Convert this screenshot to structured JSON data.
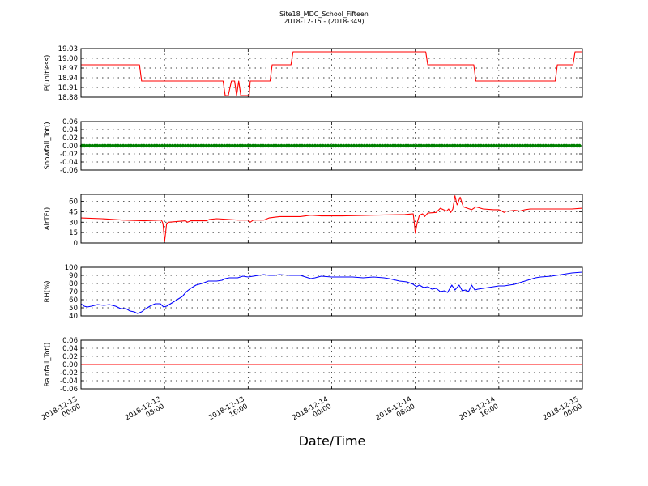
{
  "header": {
    "title": "Site18_MDC_School_Fifteen",
    "subtitle": "2018-12-15 - (2018-349)"
  },
  "chart_data": {
    "type": "line",
    "xlabel": "Date/Time",
    "x_ticks": [
      {
        "hours": 0,
        "line1": "2018-12-13",
        "line2": "00:00"
      },
      {
        "hours": 8,
        "line1": "2018-12-13",
        "line2": "08:00"
      },
      {
        "hours": 16,
        "line1": "2018-12-13",
        "line2": "16:00"
      },
      {
        "hours": 24,
        "line1": "2018-12-14",
        "line2": "00:00"
      },
      {
        "hours": 32,
        "line1": "2018-12-14",
        "line2": "08:00"
      },
      {
        "hours": 40,
        "line1": "2018-12-14",
        "line2": "16:00"
      },
      {
        "hours": 48,
        "line1": "2018-12-15",
        "line2": "00:00"
      }
    ],
    "xlim_hours": [
      0,
      48
    ],
    "grid": true,
    "panels": [
      {
        "ylabel": "P(unitless)",
        "ylim": [
          18.88,
          19.03
        ],
        "yticks": [
          "18.88",
          "18.91",
          "18.94",
          "18.97",
          "19.00",
          "19.03"
        ],
        "color": "#ff0000",
        "style": "line",
        "points": [
          [
            0,
            18.98
          ],
          [
            5.6,
            18.98
          ],
          [
            5.8,
            18.93
          ],
          [
            13.6,
            18.93
          ],
          [
            13.8,
            18.885
          ],
          [
            14.1,
            18.885
          ],
          [
            14.4,
            18.93
          ],
          [
            14.7,
            18.93
          ],
          [
            14.9,
            18.885
          ],
          [
            15.1,
            18.93
          ],
          [
            15.3,
            18.885
          ],
          [
            16.1,
            18.885
          ],
          [
            16.2,
            18.93
          ],
          [
            18.1,
            18.93
          ],
          [
            18.3,
            18.98
          ],
          [
            20.1,
            18.98
          ],
          [
            20.3,
            19.02
          ],
          [
            33.0,
            19.02
          ],
          [
            33.2,
            18.98
          ],
          [
            37.6,
            18.98
          ],
          [
            37.8,
            18.93
          ],
          [
            45.4,
            18.93
          ],
          [
            45.6,
            18.98
          ],
          [
            47.1,
            18.98
          ],
          [
            47.3,
            19.02
          ],
          [
            48,
            19.02
          ]
        ]
      },
      {
        "ylabel": "Snowfall_Tot()",
        "ylim": [
          -0.06,
          0.06
        ],
        "yticks": [
          "-0.06",
          "-0.04",
          "-0.02",
          "0.00",
          "0.02",
          "0.04",
          "0.06"
        ],
        "color": "#008000",
        "style": "dots",
        "points": [
          [
            0,
            0
          ],
          [
            48,
            0
          ]
        ]
      },
      {
        "ylabel": "AirTF()",
        "ylim": [
          0,
          70
        ],
        "yticks": [
          "0",
          "15",
          "30",
          "45",
          "60"
        ],
        "color": "#ff0000",
        "style": "line",
        "points": [
          [
            0,
            36
          ],
          [
            2,
            35
          ],
          [
            4,
            33
          ],
          [
            6,
            32
          ],
          [
            7.7,
            33
          ],
          [
            7.85,
            28
          ],
          [
            8.0,
            2
          ],
          [
            8.2,
            28
          ],
          [
            8.4,
            30
          ],
          [
            10,
            32
          ],
          [
            10.2,
            30
          ],
          [
            10.5,
            32
          ],
          [
            12,
            32
          ],
          [
            12.3,
            34
          ],
          [
            13,
            35
          ],
          [
            15,
            33
          ],
          [
            16,
            33
          ],
          [
            16.2,
            30
          ],
          [
            16.5,
            33
          ],
          [
            17.5,
            33
          ],
          [
            18,
            36
          ],
          [
            19,
            38
          ],
          [
            21,
            38
          ],
          [
            22,
            40
          ],
          [
            23,
            39
          ],
          [
            25,
            39
          ],
          [
            28,
            40
          ],
          [
            31,
            41
          ],
          [
            31.8,
            42
          ],
          [
            31.9,
            30
          ],
          [
            32.0,
            14
          ],
          [
            32.2,
            30
          ],
          [
            32.4,
            40
          ],
          [
            32.7,
            42
          ],
          [
            32.9,
            38
          ],
          [
            33.2,
            43
          ],
          [
            34,
            44
          ],
          [
            34.4,
            50
          ],
          [
            35,
            46
          ],
          [
            35.2,
            49
          ],
          [
            35.4,
            44
          ],
          [
            35.6,
            49
          ],
          [
            35.8,
            68
          ],
          [
            36,
            55
          ],
          [
            36.3,
            66
          ],
          [
            36.6,
            52
          ],
          [
            37,
            50
          ],
          [
            37.4,
            48
          ],
          [
            37.8,
            52
          ],
          [
            38.5,
            49
          ],
          [
            39.5,
            48
          ],
          [
            40,
            48
          ],
          [
            40.3,
            46
          ],
          [
            40.5,
            44
          ],
          [
            40.7,
            46
          ],
          [
            41,
            46
          ],
          [
            41.5,
            47
          ],
          [
            42,
            46
          ],
          [
            42.5,
            48
          ],
          [
            43,
            49
          ],
          [
            45,
            49
          ],
          [
            47,
            49
          ],
          [
            48,
            50
          ]
        ]
      },
      {
        "ylabel": "RH(%)",
        "ylim": [
          40,
          100
        ],
        "yticks": [
          "40",
          "50",
          "60",
          "70",
          "80",
          "90",
          "100"
        ],
        "color": "#0000ff",
        "style": "line",
        "points": [
          [
            0,
            55
          ],
          [
            0.3,
            52
          ],
          [
            0.6,
            51
          ],
          [
            1,
            52
          ],
          [
            1.6,
            54
          ],
          [
            2.2,
            53
          ],
          [
            2.7,
            54
          ],
          [
            3.3,
            52
          ],
          [
            3.8,
            49
          ],
          [
            4.3,
            49
          ],
          [
            4.7,
            46
          ],
          [
            5.1,
            45
          ],
          [
            5.4,
            43
          ],
          [
            5.8,
            45
          ],
          [
            6.1,
            48
          ],
          [
            6.6,
            52
          ],
          [
            7.1,
            55
          ],
          [
            7.6,
            55
          ],
          [
            7.9,
            51
          ],
          [
            8.2,
            52
          ],
          [
            8.7,
            56
          ],
          [
            9.2,
            60
          ],
          [
            9.7,
            64
          ],
          [
            10.1,
            70
          ],
          [
            10.5,
            74
          ],
          [
            11,
            78
          ],
          [
            11.6,
            80
          ],
          [
            12.2,
            83
          ],
          [
            13,
            83
          ],
          [
            13.5,
            84
          ],
          [
            13.8,
            86
          ],
          [
            14.2,
            87
          ],
          [
            15,
            87
          ],
          [
            15.5,
            89
          ],
          [
            16,
            88
          ],
          [
            16.5,
            89
          ],
          [
            17,
            90
          ],
          [
            17.5,
            91
          ],
          [
            18,
            90
          ],
          [
            18.5,
            90
          ],
          [
            19,
            91
          ],
          [
            20,
            90
          ],
          [
            21,
            90
          ],
          [
            21.5,
            88
          ],
          [
            22,
            86
          ],
          [
            22.4,
            87
          ],
          [
            23,
            89
          ],
          [
            24,
            88
          ],
          [
            25,
            88
          ],
          [
            26,
            88
          ],
          [
            27,
            87
          ],
          [
            28,
            88
          ],
          [
            29,
            87
          ],
          [
            29.5,
            86
          ],
          [
            30.5,
            83
          ],
          [
            31.2,
            82
          ],
          [
            31.8,
            79
          ],
          [
            32.1,
            76
          ],
          [
            32.4,
            78
          ],
          [
            32.8,
            75
          ],
          [
            33.2,
            76
          ],
          [
            33.6,
            73
          ],
          [
            34,
            74
          ],
          [
            34.4,
            70
          ],
          [
            34.8,
            71
          ],
          [
            35.1,
            69
          ],
          [
            35.5,
            78
          ],
          [
            35.8,
            72
          ],
          [
            36.2,
            78
          ],
          [
            36.5,
            71
          ],
          [
            36.8,
            72
          ],
          [
            37.1,
            70
          ],
          [
            37.4,
            78
          ],
          [
            37.7,
            72
          ],
          [
            38,
            73
          ],
          [
            38.5,
            74
          ],
          [
            39,
            75
          ],
          [
            39.5,
            76
          ],
          [
            40,
            77
          ],
          [
            40.5,
            77
          ],
          [
            41,
            78
          ],
          [
            41.5,
            79
          ],
          [
            42,
            81
          ],
          [
            42.5,
            83
          ],
          [
            43,
            85
          ],
          [
            43.5,
            87
          ],
          [
            44,
            88
          ],
          [
            45,
            89
          ],
          [
            46,
            91
          ],
          [
            47,
            93
          ],
          [
            48,
            94
          ]
        ]
      },
      {
        "ylabel": "Rainfall_Tot()",
        "ylim": [
          -0.06,
          0.06
        ],
        "yticks": [
          "-0.06",
          "-0.04",
          "-0.02",
          "0.00",
          "0.02",
          "0.04",
          "0.06"
        ],
        "color": "#ff0000",
        "style": "line",
        "points": [
          [
            0,
            0
          ],
          [
            48,
            0
          ]
        ]
      }
    ]
  }
}
